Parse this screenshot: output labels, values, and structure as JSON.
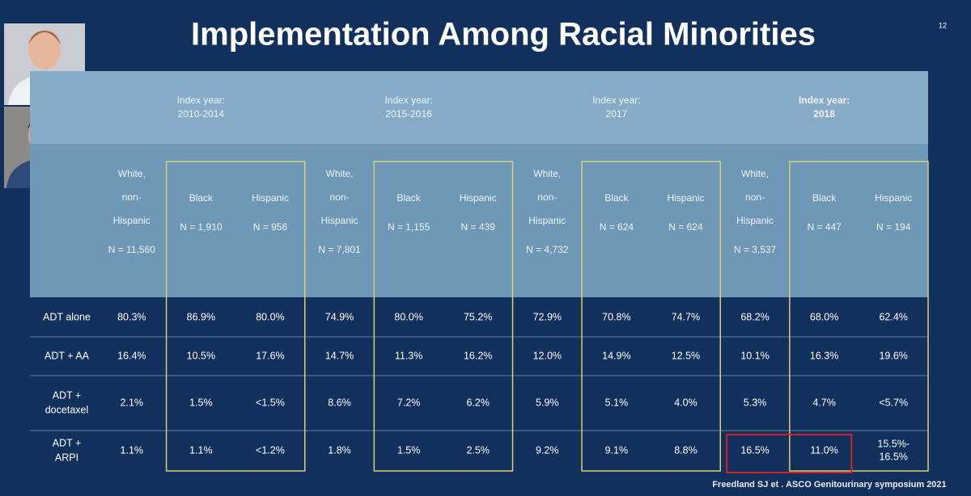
{
  "header": {
    "title": "Implementation Among Racial Minorities",
    "page_number": "12"
  },
  "table": {
    "groups": [
      {
        "lines": [
          "Index year:",
          "2010-2014"
        ],
        "bold": false
      },
      {
        "lines": [
          "Index year:",
          "2015-2016"
        ],
        "bold": false
      },
      {
        "lines": [
          "Index year:",
          "2017"
        ],
        "bold": false
      },
      {
        "lines": [
          "Index year:",
          "2018"
        ],
        "bold": true
      }
    ],
    "columns": [
      [
        "White,",
        "non-",
        "Hispanic",
        "N = 11,560"
      ],
      [
        "Black",
        "N = 1,910"
      ],
      [
        "Hispanic",
        "N = 956"
      ],
      [
        "White,",
        "non-",
        "Hispanic",
        "N = 7,801"
      ],
      [
        "Black",
        "N = 1,155"
      ],
      [
        "Hispanic",
        "N = 439"
      ],
      [
        "White,",
        "non-",
        "Hispanic",
        "N = 4,732"
      ],
      [
        "Black",
        "N = 624"
      ],
      [
        "Hispanic",
        "N = 624"
      ],
      [
        "White,",
        "non-",
        "Hispanic",
        "N = 3,537"
      ],
      [
        "Black",
        "N = 447"
      ],
      [
        "Hispanic",
        "N = 194"
      ]
    ],
    "rows": [
      {
        "label": [
          "ADT alone"
        ],
        "cells": [
          "80.3%",
          "86.9%",
          "80.0%",
          "74.9%",
          "80.0%",
          "75.2%",
          "72.9%",
          "70.8%",
          "74.7%",
          "68.2%",
          "68.0%",
          "62.4%"
        ]
      },
      {
        "label": [
          "ADT + AA"
        ],
        "cells": [
          "16.4%",
          "10.5%",
          "17.6%",
          "14.7%",
          "11.3%",
          "16.2%",
          "12.0%",
          "14.9%",
          "12.5%",
          "10.1%",
          "16.3%",
          "19.6%"
        ]
      },
      {
        "label": [
          "ADT +",
          "docetaxel"
        ],
        "cells": [
          "2.1%",
          "1.5%",
          "<1.5%",
          "8.6%",
          "7.2%",
          "6.2%",
          "5.9%",
          "5.1%",
          "4.0%",
          "5.3%",
          "4.7%",
          "<5.7%"
        ]
      },
      {
        "label": [
          "ADT +",
          "ARPI"
        ],
        "cells": [
          "1.1%",
          "1.1%",
          "<1.2%",
          "1.8%",
          "1.5%",
          "2.5%",
          "9.2%",
          "9.1%",
          "8.8%",
          "16.5%",
          "11.0%",
          [
            "15.5%-",
            "16.5%"
          ]
        ]
      }
    ]
  },
  "footer": {
    "citation": "Freedland SJ et . ASCO Genitourinary symposium 2021"
  }
}
